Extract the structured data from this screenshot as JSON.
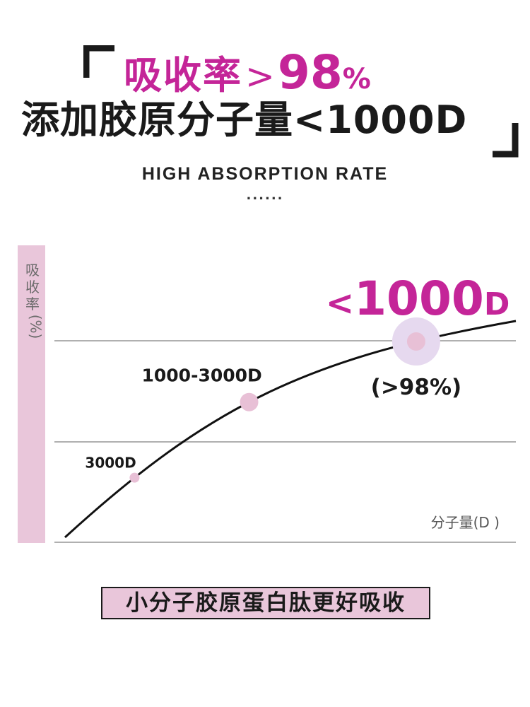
{
  "colors": {
    "accent": "#c42598",
    "curve": "#111111",
    "grid": "#b0b0b0",
    "axis_bg": "#e9c6da",
    "marker": "#e8c0d6",
    "halo": "#e6d9ef"
  },
  "header": {
    "title_line1_cn": "吸收率",
    "title_line1_gt": ">",
    "title_line1_num": "98",
    "title_line1_pct": "%",
    "title_line2": "添加胶原分子量<1000D",
    "subtitle": "HIGH ABSORPTION RATE",
    "dots": "......"
  },
  "chart_data": {
    "type": "line",
    "ylabel_main": "吸收率",
    "ylabel_unit": "(%)",
    "xlabel": "分子量(D )",
    "grid": true,
    "curve_description": "concave increasing absorption curve",
    "points": [
      {
        "label": "3000D",
        "t": 0.18,
        "size": "small"
      },
      {
        "label": "1000-3000D",
        "t": 0.45,
        "size": "medium"
      },
      {
        "label": "<1000D",
        "sublabel": "(>98%)",
        "t": 0.8,
        "size": "large",
        "highlight": true
      }
    ]
  },
  "footer": {
    "text": "小分子胶原蛋白肽更好吸收"
  }
}
